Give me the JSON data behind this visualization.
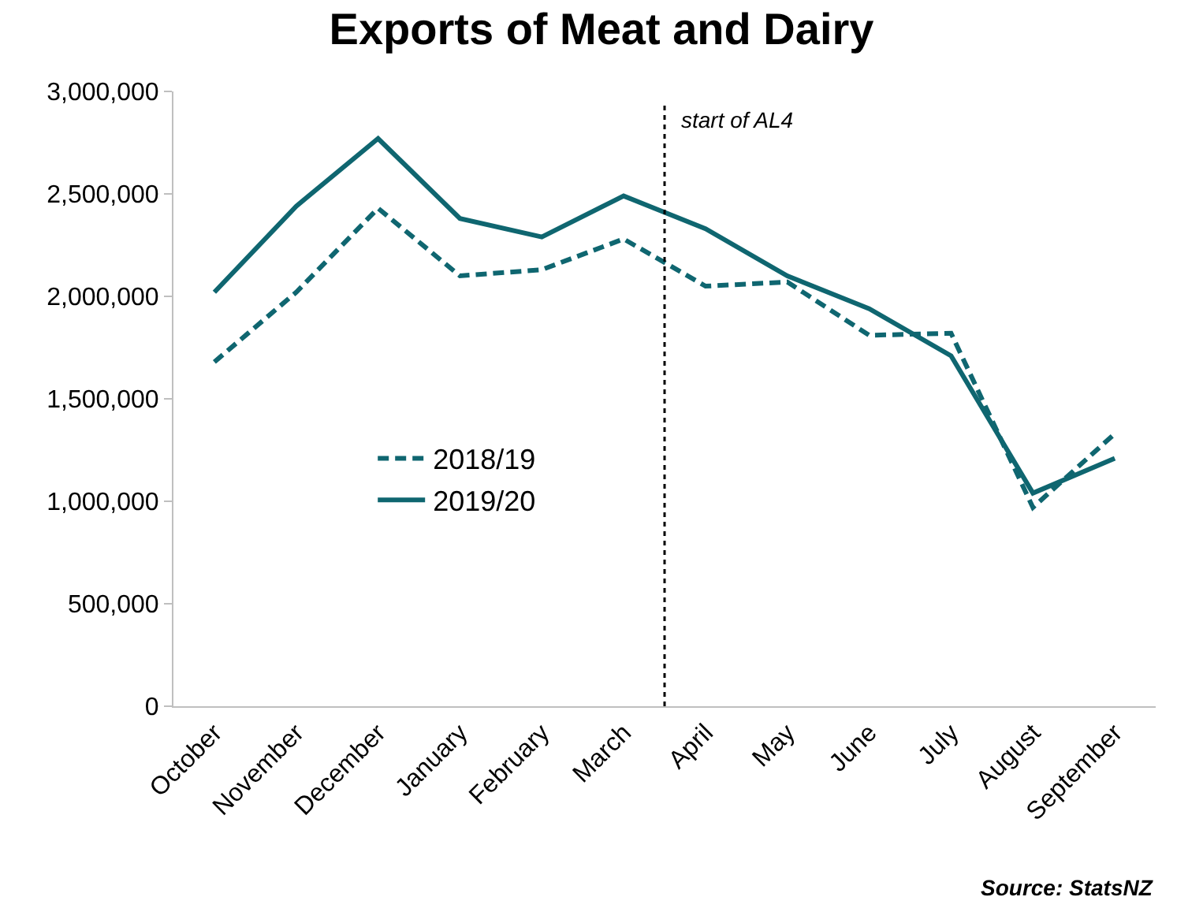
{
  "chart_data": {
    "type": "line",
    "title": "Exports of Meat and Dairy",
    "categories": [
      "October",
      "November",
      "December",
      "January",
      "February",
      "March",
      "April",
      "May",
      "June",
      "July",
      "August",
      "September"
    ],
    "series": [
      {
        "name": "2018/19",
        "color": "#0f6670",
        "line_style": "dashed",
        "values": [
          1680000,
          2020000,
          2430000,
          2100000,
          2130000,
          2280000,
          2050000,
          2070000,
          1810000,
          1820000,
          970000,
          1330000
        ]
      },
      {
        "name": "2019/20",
        "color": "#0f6670",
        "line_style": "solid",
        "values": [
          2020000,
          2440000,
          2770000,
          2380000,
          2290000,
          2490000,
          2330000,
          2100000,
          1940000,
          1710000,
          1040000,
          1210000
        ]
      }
    ],
    "ylim": [
      0,
      3000000
    ],
    "yticks": [
      {
        "value": 0,
        "label": "0"
      },
      {
        "value": 500000,
        "label": "500,000"
      },
      {
        "value": 1000000,
        "label": "1,000,000"
      },
      {
        "value": 1500000,
        "label": "1,500,000"
      },
      {
        "value": 2000000,
        "label": "2,000,000"
      },
      {
        "value": 2500000,
        "label": "2,500,000"
      },
      {
        "value": 3000000,
        "label": "3,000,000"
      }
    ],
    "annotations": [
      "start of AL4",
      "Source: StatsNZ"
    ],
    "grid": false,
    "legend": "center",
    "marker": "none"
  }
}
